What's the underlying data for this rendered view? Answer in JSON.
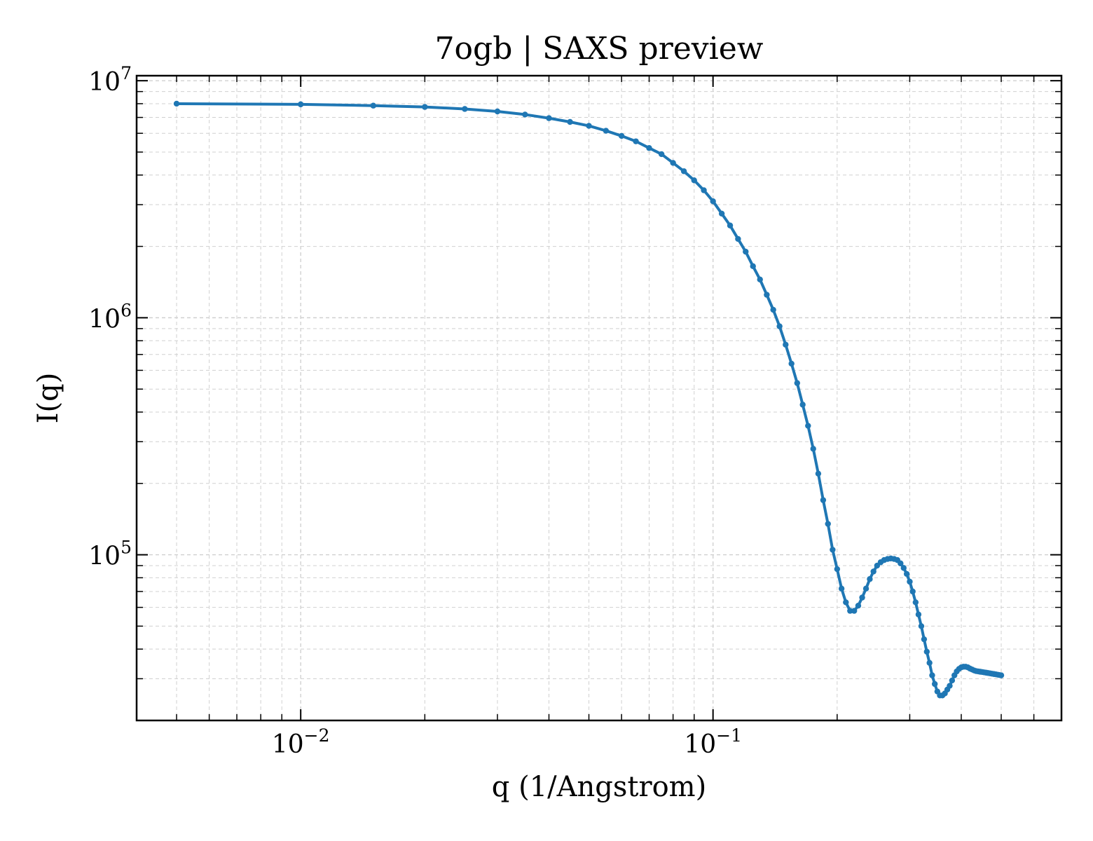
{
  "chart_data": {
    "type": "line",
    "title": "7ogb | SAXS preview",
    "xlabel": "q (1/Angstrom)",
    "ylabel": "I(q)",
    "xscale": "log",
    "yscale": "log",
    "xlim": [
      0.004,
      0.7
    ],
    "ylim": [
      20000,
      10500000
    ],
    "grid": true,
    "legend": "none",
    "x_ticks": [
      {
        "value": 0.01,
        "base": "10",
        "exp": "−2"
      },
      {
        "value": 0.1,
        "base": "10",
        "exp": "−1"
      }
    ],
    "y_ticks": [
      {
        "value": 100000,
        "base": "10",
        "exp": "5"
      },
      {
        "value": 1000000,
        "base": "10",
        "exp": "6"
      },
      {
        "value": 10000000,
        "base": "10",
        "exp": "7"
      }
    ],
    "series": [
      {
        "color": "#1f77b4",
        "x": [
          0.005,
          0.01,
          0.015,
          0.02,
          0.025,
          0.03,
          0.035,
          0.04,
          0.045,
          0.05,
          0.055,
          0.06,
          0.065,
          0.07,
          0.075,
          0.08,
          0.085,
          0.09,
          0.095,
          0.1,
          0.105,
          0.11,
          0.115,
          0.12,
          0.125,
          0.13,
          0.135,
          0.14,
          0.145,
          0.15,
          0.155,
          0.16,
          0.165,
          0.17,
          0.175,
          0.18,
          0.185,
          0.19,
          0.195,
          0.2,
          0.205,
          0.21,
          0.215,
          0.22,
          0.225,
          0.23,
          0.235,
          0.24,
          0.245,
          0.25,
          0.255,
          0.26,
          0.265,
          0.27,
          0.275,
          0.28,
          0.285,
          0.29,
          0.295,
          0.3,
          0.305,
          0.31,
          0.315,
          0.32,
          0.325,
          0.33,
          0.335,
          0.34,
          0.345,
          0.35,
          0.355,
          0.36,
          0.365,
          0.37,
          0.375,
          0.38,
          0.385,
          0.39,
          0.395,
          0.4,
          0.405,
          0.41,
          0.415,
          0.42,
          0.425,
          0.43,
          0.435,
          0.44,
          0.445,
          0.45,
          0.455,
          0.46,
          0.465,
          0.47,
          0.475,
          0.48,
          0.485,
          0.49,
          0.495,
          0.5
        ],
        "y": [
          8000000,
          7950000,
          7850000,
          7750000,
          7600000,
          7420000,
          7200000,
          6950000,
          6700000,
          6450000,
          6150000,
          5850000,
          5550000,
          5200000,
          4900000,
          4500000,
          4150000,
          3800000,
          3450000,
          3100000,
          2750000,
          2450000,
          2150000,
          1900000,
          1650000,
          1450000,
          1250000,
          1080000,
          920000,
          770000,
          640000,
          530000,
          430000,
          350000,
          280000,
          220000,
          170000,
          135000,
          105000,
          87000,
          72000,
          63000,
          58000,
          58000,
          61000,
          66000,
          72000,
          79000,
          85000,
          90000,
          93000,
          95000,
          96000,
          96500,
          96000,
          95000,
          92000,
          88000,
          83000,
          77000,
          70000,
          63000,
          56000,
          50000,
          44000,
          39000,
          35000,
          31000,
          28500,
          26500,
          25500,
          25500,
          26000,
          27000,
          28000,
          29500,
          31000,
          32200,
          33000,
          33500,
          33700,
          33700,
          33500,
          33100,
          32800,
          32500,
          32300,
          32200,
          32100,
          32000,
          31900,
          31800,
          31700,
          31600,
          31500,
          31400,
          31300,
          31200,
          31100,
          31000
        ]
      }
    ]
  }
}
